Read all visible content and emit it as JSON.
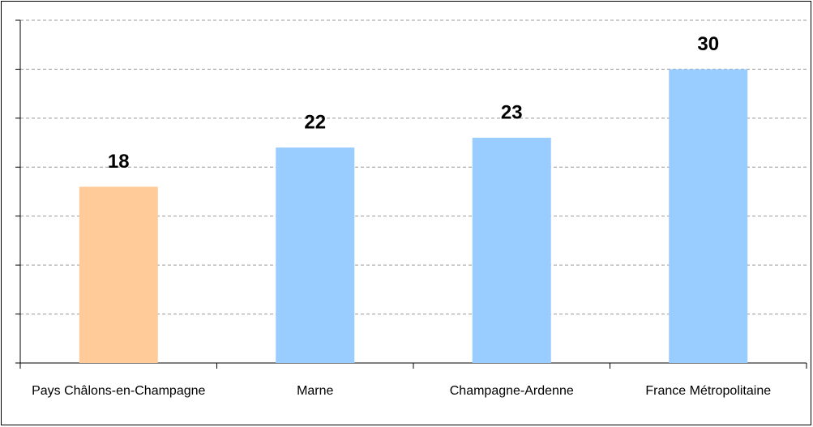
{
  "chart_data": {
    "type": "bar",
    "categories": [
      "Pays Châlons-en-Champagne",
      "Marne",
      "Champagne-Ardenne",
      "France Métropolitaine"
    ],
    "values": [
      18,
      22,
      23,
      30
    ],
    "colors": [
      "#ffcc99",
      "#99ccff",
      "#99ccff",
      "#99ccff"
    ],
    "ylim": [
      0,
      35
    ],
    "yticks": [
      0,
      5,
      10,
      15,
      20,
      25,
      30,
      35
    ],
    "grid": true
  }
}
